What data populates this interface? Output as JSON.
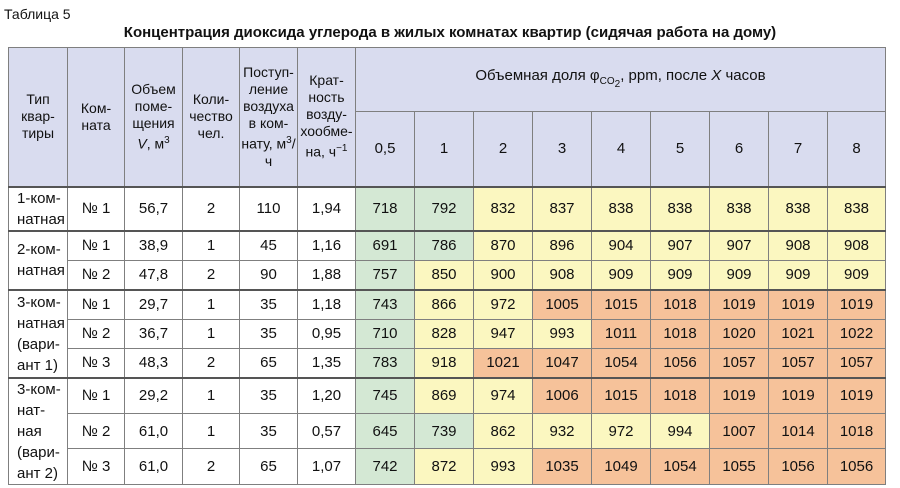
{
  "table_label": "Таблица 5",
  "title": "Концентрация диоксида углерода в жилых комнатах квартир (сидячая работа на дому)",
  "headers": {
    "type": "Тип квар-тиры",
    "room": "Ком-ната",
    "volume_pre": "Объем поме-щения ",
    "volume_var": "V",
    "volume_unit": ", м",
    "volume_sup": "3",
    "people": "Коли-чество чел.",
    "airflow_pre": "Поступ-ление воздуха в ком-нату, м",
    "airflow_sup": "3",
    "airflow_post": "/ч",
    "exchange_pre": "Крат-ность возду-хообме-на, ч",
    "exchange_sup": "−1",
    "co2_pre": "Объемная доля φ",
    "co2_sub": "CO",
    "co2_subsub": "2",
    "co2_mid": ", ppm, после ",
    "co2_var": "X",
    "co2_post": " часов",
    "hours": [
      "0,5",
      "1",
      "2",
      "3",
      "4",
      "5",
      "6",
      "7",
      "8"
    ]
  },
  "colors": {
    "green": "#d4e8d4",
    "yellow": "#fbf7c0",
    "orange": "#f6c29a",
    "header": "#d9dcef"
  },
  "groups": [
    {
      "type": "1-ком-натная",
      "rows": [
        {
          "room": "№ 1",
          "volume": "56,7",
          "people": "2",
          "airflow": "110",
          "exchange": "1,94",
          "values": [
            "718",
            "792",
            "832",
            "837",
            "838",
            "838",
            "838",
            "838",
            "838"
          ],
          "colors": [
            "g",
            "g",
            "y",
            "y",
            "y",
            "y",
            "y",
            "y",
            "y"
          ]
        }
      ]
    },
    {
      "type": "2-ком-натная",
      "rows": [
        {
          "room": "№ 1",
          "volume": "38,9",
          "people": "1",
          "airflow": "45",
          "exchange": "1,16",
          "values": [
            "691",
            "786",
            "870",
            "896",
            "904",
            "907",
            "907",
            "908",
            "908"
          ],
          "colors": [
            "g",
            "g",
            "y",
            "y",
            "y",
            "y",
            "y",
            "y",
            "y"
          ]
        },
        {
          "room": "№ 2",
          "volume": "47,8",
          "people": "2",
          "airflow": "90",
          "exchange": "1,88",
          "values": [
            "757",
            "850",
            "900",
            "908",
            "909",
            "909",
            "909",
            "909",
            "909"
          ],
          "colors": [
            "g",
            "y",
            "y",
            "y",
            "y",
            "y",
            "y",
            "y",
            "y"
          ]
        }
      ]
    },
    {
      "type": "3-ком-натная (вари-ант 1)",
      "rows": [
        {
          "room": "№ 1",
          "volume": "29,7",
          "people": "1",
          "airflow": "35",
          "exchange": "1,18",
          "values": [
            "743",
            "866",
            "972",
            "1005",
            "1015",
            "1018",
            "1019",
            "1019",
            "1019"
          ],
          "colors": [
            "g",
            "y",
            "y",
            "o",
            "o",
            "o",
            "o",
            "o",
            "o"
          ]
        },
        {
          "room": "№ 2",
          "volume": "36,7",
          "people": "1",
          "airflow": "35",
          "exchange": "0,95",
          "values": [
            "710",
            "828",
            "947",
            "993",
            "1011",
            "1018",
            "1020",
            "1021",
            "1022"
          ],
          "colors": [
            "g",
            "y",
            "y",
            "y",
            "o",
            "o",
            "o",
            "o",
            "o"
          ]
        },
        {
          "room": "№ 3",
          "volume": "48,3",
          "people": "2",
          "airflow": "65",
          "exchange": "1,35",
          "values": [
            "783",
            "918",
            "1021",
            "1047",
            "1054",
            "1056",
            "1057",
            "1057",
            "1057"
          ],
          "colors": [
            "g",
            "y",
            "o",
            "o",
            "o",
            "o",
            "o",
            "o",
            "o"
          ]
        }
      ]
    },
    {
      "type": "3-ком-нат-ная (вари-ант 2)",
      "rows": [
        {
          "room": "№ 1",
          "volume": "29,2",
          "people": "1",
          "airflow": "35",
          "exchange": "1,20",
          "values": [
            "745",
            "869",
            "974",
            "1006",
            "1015",
            "1018",
            "1019",
            "1019",
            "1019"
          ],
          "colors": [
            "g",
            "y",
            "y",
            "o",
            "o",
            "o",
            "o",
            "o",
            "o"
          ]
        },
        {
          "room": "№ 2",
          "volume": "61,0",
          "people": "1",
          "airflow": "35",
          "exchange": "0,57",
          "values": [
            "645",
            "739",
            "862",
            "932",
            "972",
            "994",
            "1007",
            "1014",
            "1018"
          ],
          "colors": [
            "g",
            "g",
            "y",
            "y",
            "y",
            "y",
            "o",
            "o",
            "o"
          ]
        },
        {
          "room": "№ 3",
          "volume": "61,0",
          "people": "2",
          "airflow": "65",
          "exchange": "1,07",
          "values": [
            "742",
            "872",
            "993",
            "1035",
            "1049",
            "1054",
            "1055",
            "1056",
            "1056"
          ],
          "colors": [
            "g",
            "y",
            "y",
            "o",
            "o",
            "o",
            "o",
            "o",
            "o"
          ]
        }
      ]
    }
  ]
}
